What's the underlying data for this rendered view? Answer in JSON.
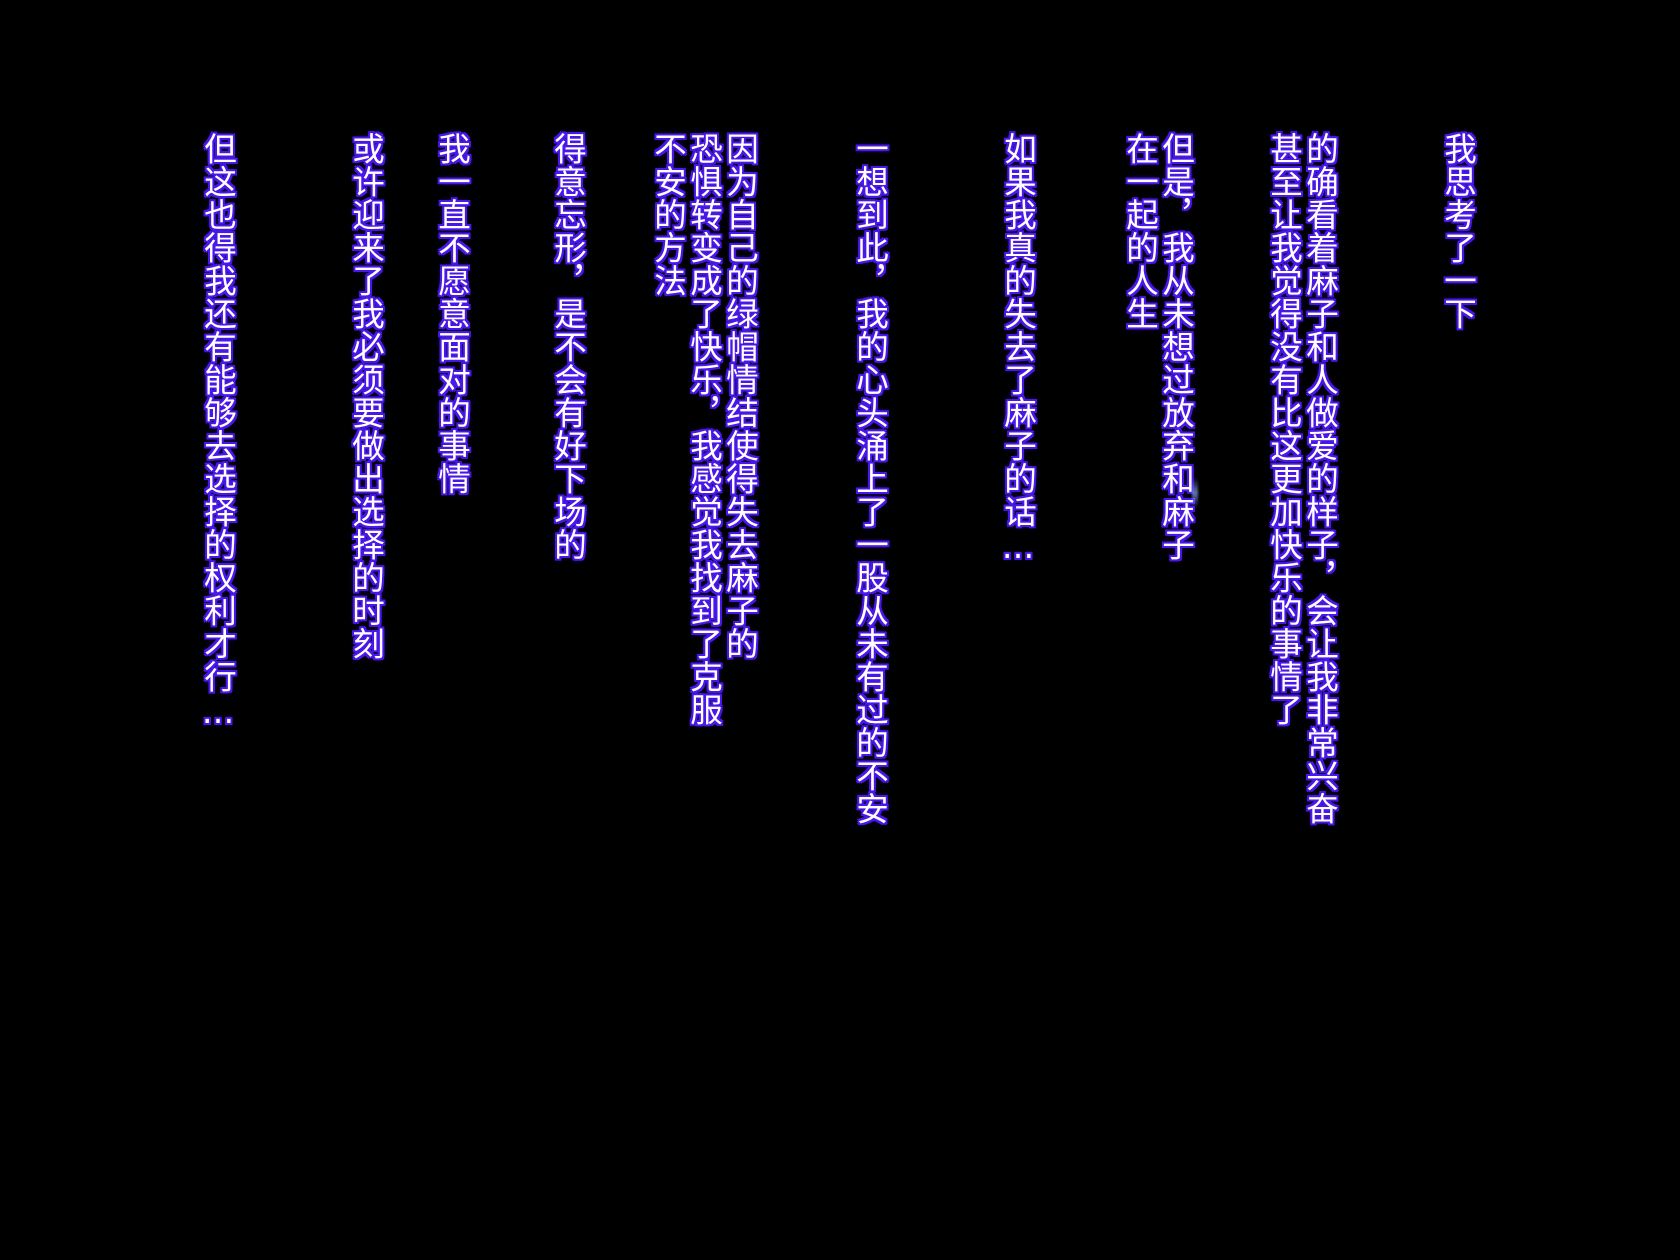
{
  "lines": [
    "我思考了一下",
    "的确看着麻子和人做爱的样子，会让我非常兴奋",
    "甚至让我觉得没有比这更加快乐的事情了",
    "但是，我从未想过放弃和麻子",
    "在一起的人生",
    "如果我真的失去了麻子的话…",
    "一想到此，我的心头涌上了一股从未有过的不安",
    "因为自己的绿帽情结使得失去麻子的",
    "恐惧转变成了快乐，我感觉我找到了克服",
    "不安的方法",
    "得意忘形，是不会有好下场的",
    "我一直不愿意面对的事情",
    "或许迎来了我必须要做出选择的时刻",
    "但这也得我还有能够去选择的权利才行…"
  ],
  "colors": {
    "background": "#000000",
    "text": "#ffffff",
    "outline": "#4a18e6"
  }
}
